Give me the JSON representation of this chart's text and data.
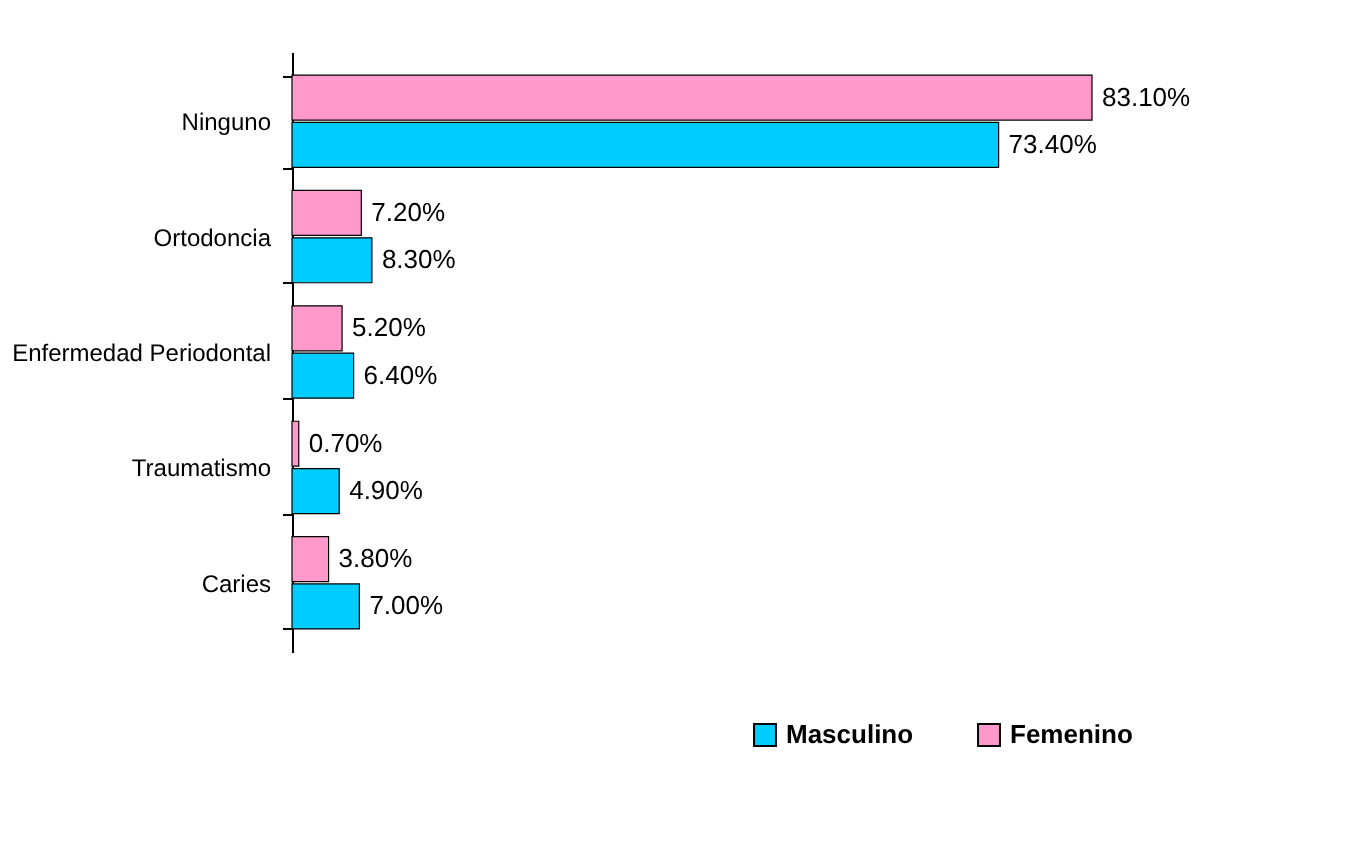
{
  "chart_data": {
    "type": "bar",
    "orientation": "horizontal",
    "categories": [
      "Ninguno",
      "Ortodoncia",
      "Enfermedad Periodontal",
      "Traumatismo",
      "Caries"
    ],
    "series": [
      {
        "name": "Masculino",
        "color": "#00ccff",
        "values": [
          73.4,
          8.3,
          6.4,
          4.9,
          7.0
        ],
        "value_labels": [
          "73.40%",
          "8.30%",
          "6.40%",
          "4.90%",
          "7.00%"
        ]
      },
      {
        "name": "Femenino",
        "color": "#ff99cc",
        "values": [
          83.1,
          7.2,
          5.2,
          0.7,
          3.8
        ],
        "value_labels": [
          "83.10%",
          "7.20%",
          "5.20%",
          "0.70%",
          "3.80%"
        ]
      }
    ],
    "legend": "bottom right",
    "grid": false
  }
}
